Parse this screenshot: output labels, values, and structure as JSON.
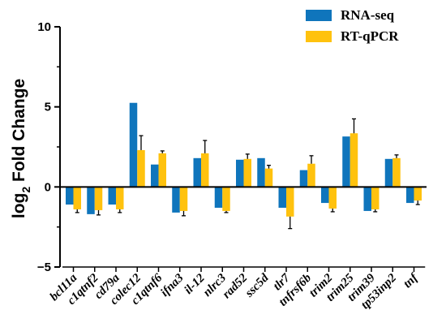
{
  "chart_data": {
    "type": "bar",
    "ylabel_main": "log",
    "ylabel_sub": "2",
    "ylabel_rest": " Fold Change",
    "ylim": [
      -5,
      10
    ],
    "yticks": [
      -5,
      0,
      5,
      10
    ],
    "legend_position": "top-right",
    "categories": [
      "bcl11a",
      "c1qtnf2",
      "cd79a",
      "colec12",
      "c1qtnf6",
      "ifna3",
      "il-12",
      "nlrc3",
      "rad52",
      "ssc5d",
      "tlr7",
      "tnfrsf6b",
      "trim2",
      "trim25",
      "trim39",
      "tp53inp2",
      "tnf"
    ],
    "series": [
      {
        "name": "RNA-seq",
        "color": "#0f75bc",
        "values": [
          -1.1,
          -1.7,
          -1.1,
          5.25,
          1.4,
          -1.6,
          1.8,
          -1.3,
          1.7,
          1.8,
          -1.3,
          1.05,
          -1.0,
          3.15,
          -1.5,
          1.75,
          -1.0
        ],
        "errors": [
          0,
          0,
          0,
          0,
          0,
          0,
          0,
          0,
          0,
          0,
          0,
          0,
          0,
          0,
          0,
          0,
          0
        ]
      },
      {
        "name": "RT-qPCR",
        "color": "#ffc20e",
        "values": [
          -1.4,
          -1.45,
          -1.4,
          2.3,
          2.1,
          -1.5,
          2.1,
          -1.5,
          1.75,
          1.15,
          -1.85,
          1.45,
          -1.35,
          3.35,
          -1.4,
          1.8,
          -0.85
        ],
        "errors": [
          0.2,
          0.3,
          0.2,
          0.9,
          0.15,
          0.3,
          0.8,
          0.1,
          0.3,
          0.2,
          0.75,
          0.5,
          0.2,
          0.9,
          0.15,
          0.2,
          0.25
        ]
      }
    ]
  }
}
